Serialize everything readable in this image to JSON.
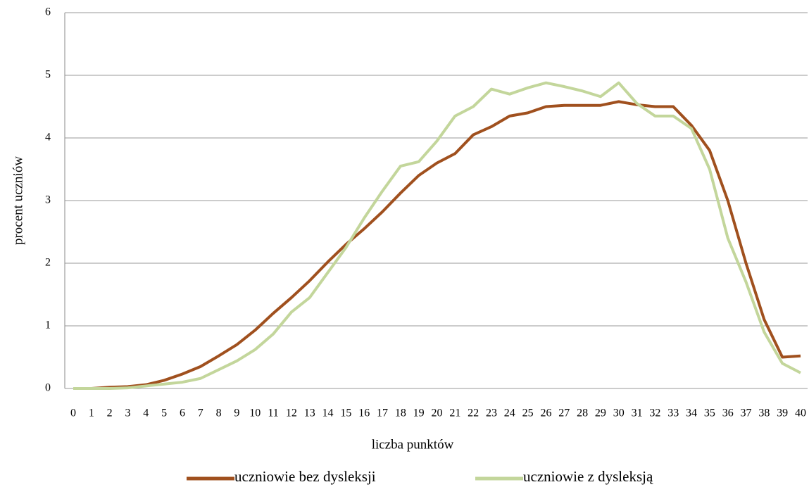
{
  "chart_data": {
    "type": "line",
    "x_label": "liczba punktów",
    "y_label": "procent uczniów",
    "categories": [
      "0",
      "1",
      "2",
      "3",
      "4",
      "5",
      "6",
      "7",
      "8",
      "9",
      "10",
      "11",
      "12",
      "13",
      "14",
      "15",
      "16",
      "17",
      "18",
      "19",
      "20",
      "21",
      "22",
      "23",
      "24",
      "25",
      "26",
      "27",
      "28",
      "29",
      "30",
      "31",
      "32",
      "33",
      "34",
      "35",
      "36",
      "37",
      "38",
      "39",
      "40"
    ],
    "series": [
      {
        "name": "uczniowie  bez dysleksji",
        "color": "#a0501e",
        "values": [
          0,
          0,
          0.02,
          0.03,
          0.06,
          0.13,
          0.23,
          0.35,
          0.52,
          0.7,
          0.93,
          1.2,
          1.45,
          1.72,
          2.02,
          2.3,
          2.55,
          2.82,
          3.12,
          3.4,
          3.6,
          3.75,
          4.05,
          4.18,
          4.35,
          4.4,
          4.5,
          4.52,
          4.52,
          4.52,
          4.58,
          4.53,
          4.5,
          4.5,
          4.2,
          3.8,
          3.0,
          2.0,
          1.1,
          0.5,
          0.52
        ]
      },
      {
        "name": "uczniowie  z  dysleksją",
        "color": "#c3d69b",
        "values": [
          0,
          0,
          0,
          0.01,
          0.04,
          0.07,
          0.1,
          0.16,
          0.3,
          0.44,
          0.62,
          0.87,
          1.22,
          1.45,
          1.85,
          2.25,
          2.72,
          3.15,
          3.55,
          3.62,
          3.95,
          4.35,
          4.5,
          4.78,
          4.7,
          4.8,
          4.88,
          4.82,
          4.75,
          4.66,
          4.88,
          4.55,
          4.35,
          4.35,
          4.15,
          3.5,
          2.4,
          1.7,
          0.9,
          0.4,
          0.25
        ]
      }
    ],
    "ylim": [
      0,
      6
    ],
    "yticks": [
      0,
      1,
      2,
      3,
      4,
      5,
      6
    ],
    "grid": true,
    "legend": "bottom"
  }
}
